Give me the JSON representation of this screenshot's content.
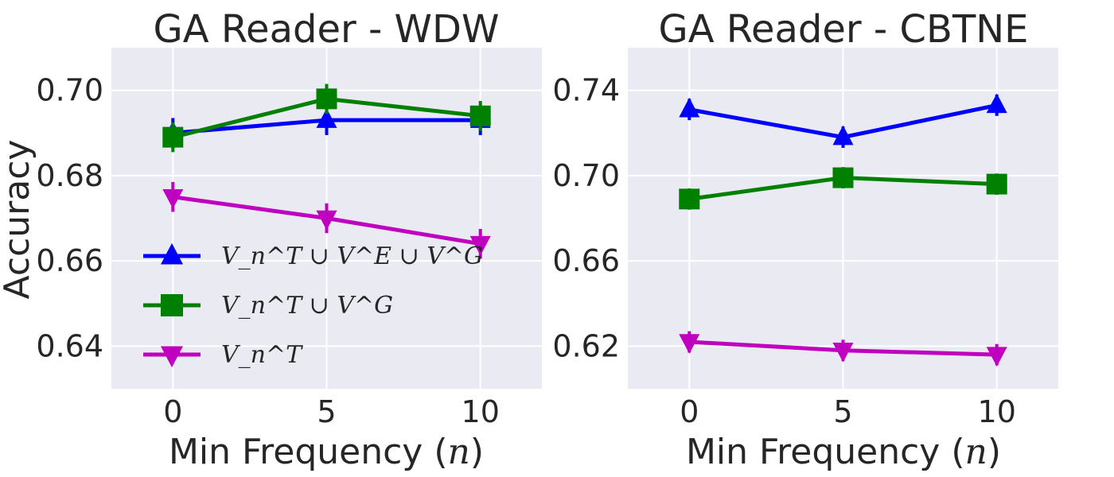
{
  "chart_data": [
    {
      "type": "line",
      "title": "GA Reader - WDW",
      "xlabel": "Min Frequency (",
      "xlabel_var": "n",
      "xlabel_close": ")",
      "ylabel": "Accuracy",
      "x": [
        0,
        5,
        10
      ],
      "xticks": [
        "0",
        "5",
        "10"
      ],
      "yticks": [
        "0.64",
        "0.66",
        "0.68",
        "0.70"
      ],
      "ytick_values": [
        0.64,
        0.66,
        0.68,
        0.7
      ],
      "xlim": [
        -2,
        12
      ],
      "ylim": [
        0.63,
        0.71
      ],
      "grid": true,
      "legend_position": "lower-left",
      "series": [
        {
          "name": "V_n^T ∪ V^E ∪ V^G",
          "color": "#0000ff",
          "marker": "triangle-up",
          "values": [
            0.69,
            0.693,
            0.693
          ],
          "errors": [
            0.0035,
            0.0035,
            0.0035
          ]
        },
        {
          "name": "V_n^T ∪ V^G",
          "color": "#008000",
          "marker": "square",
          "values": [
            0.689,
            0.698,
            0.694
          ],
          "errors": [
            0.0035,
            0.0035,
            0.0035
          ]
        },
        {
          "name": "V_n^T",
          "color": "#bf00bf",
          "marker": "triangle-down",
          "values": [
            0.675,
            0.67,
            0.664
          ],
          "errors": [
            0.0035,
            0.0035,
            0.0035
          ]
        }
      ]
    },
    {
      "type": "line",
      "title": "GA Reader - CBTNE",
      "xlabel": "Min Frequency (",
      "xlabel_var": "n",
      "xlabel_close": ")",
      "ylabel": "",
      "x": [
        0,
        5,
        10
      ],
      "xticks": [
        "0",
        "5",
        "10"
      ],
      "yticks": [
        "0.62",
        "0.66",
        "0.70",
        "0.74"
      ],
      "ytick_values": [
        0.62,
        0.66,
        0.7,
        0.74
      ],
      "xlim": [
        -2,
        12
      ],
      "ylim": [
        0.6,
        0.76
      ],
      "grid": true,
      "series": [
        {
          "name": "V_n^T ∪ V^E ∪ V^G",
          "color": "#0000ff",
          "marker": "triangle-up",
          "values": [
            0.731,
            0.718,
            0.733
          ],
          "errors": [
            0.005,
            0.005,
            0.005
          ]
        },
        {
          "name": "V_n^T ∪ V^G",
          "color": "#008000",
          "marker": "square",
          "values": [
            0.689,
            0.699,
            0.696
          ],
          "errors": [
            0.005,
            0.005,
            0.005
          ]
        },
        {
          "name": "V_n^T",
          "color": "#bf00bf",
          "marker": "triangle-down",
          "values": [
            0.622,
            0.618,
            0.616
          ],
          "errors": [
            0.005,
            0.005,
            0.005
          ]
        }
      ]
    }
  ]
}
